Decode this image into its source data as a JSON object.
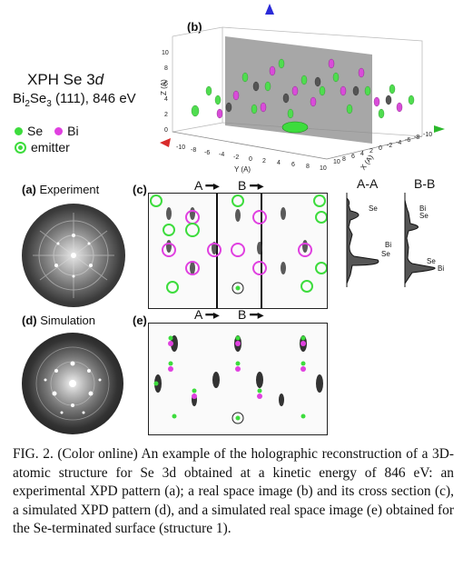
{
  "title": {
    "main": "XPH Se 3",
    "main_italic": "d",
    "sub": "Bi",
    "sub2": "2",
    "sub3": "Se",
    "sub4": "3",
    "sub_rest": " (111), 846 eV"
  },
  "legend": {
    "se": "Se",
    "bi": "Bi",
    "emitter": "emitter",
    "se_color": "#3ddc3d",
    "bi_color": "#e040e0"
  },
  "panels": {
    "a": {
      "letter": "(a)",
      "name": "Experiment"
    },
    "b": {
      "letter": "(b)"
    },
    "c": {
      "letter": "(c)"
    },
    "d": {
      "letter": "(d)",
      "name": "Simulation"
    },
    "e": {
      "letter": "(e)"
    }
  },
  "cuts": {
    "A": "A",
    "B": "B",
    "AA": "A-A",
    "BB": "B-B"
  },
  "profile_labels": {
    "aa": [
      "Se",
      "Bi",
      "Se"
    ],
    "bb": [
      "Bi",
      "Se",
      "Se",
      "Bi"
    ]
  },
  "plot3d": {
    "z_label": "Z (A)",
    "y_label": "Y (A)",
    "x_label": "X (A)",
    "z_ticks": [
      "10",
      "8",
      "6",
      "4",
      "2",
      "0"
    ],
    "y_ticks": [
      "-10",
      "-8",
      "-6",
      "-4",
      "-2",
      "0",
      "2",
      "4",
      "6",
      "8",
      "10"
    ],
    "x_ticks": [
      "10",
      "8",
      "6",
      "4",
      "2",
      "0",
      "-2",
      "-4",
      "-6",
      "-8",
      "-10"
    ]
  },
  "caption": "FIG. 2. (Color online) An example of the holographic reconstruction of a 3D-atomic structure for Se 3d obtained at a kinetic energy of 846 eV: an experimental XPD pattern (a); a real space image (b) and its cross section (c), a simulated XPD pattern (d), and a simulated real space image (e) obtained for the Se-terminated surface (structure 1)."
}
